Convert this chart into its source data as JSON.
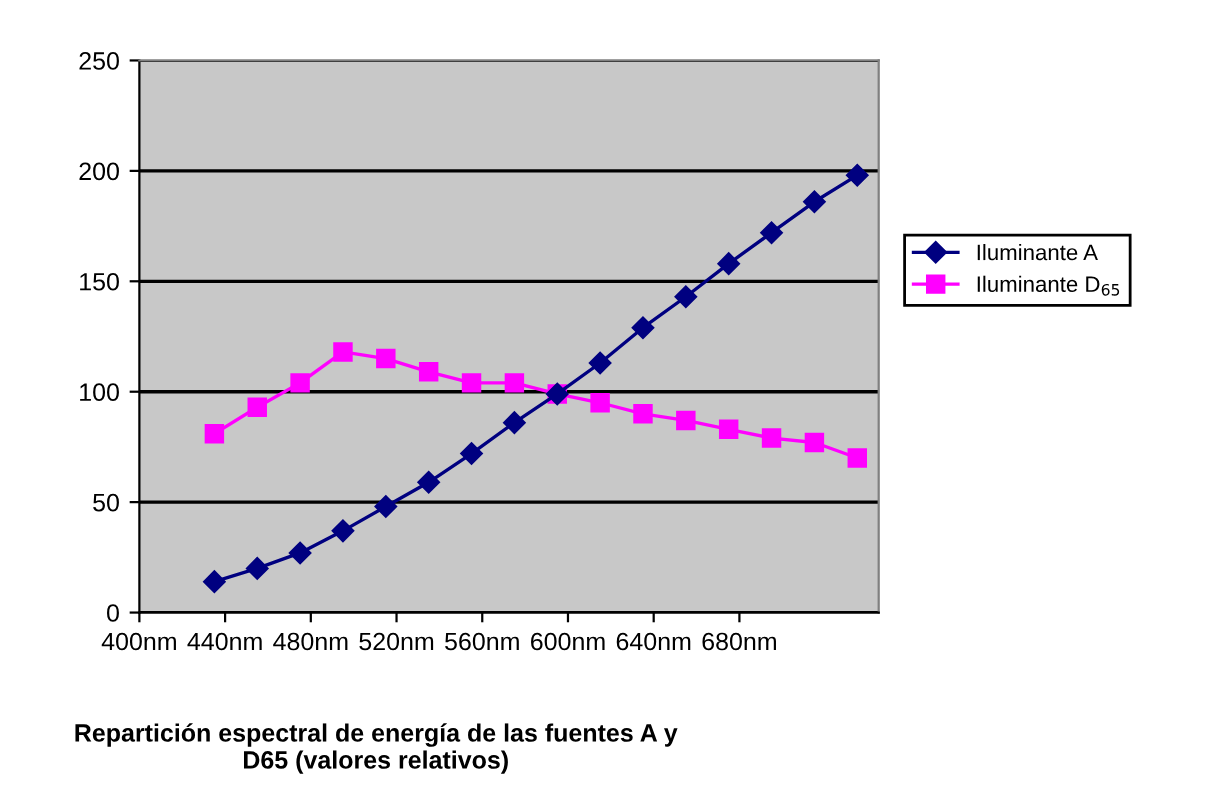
{
  "chart_data": {
    "type": "line",
    "title": "Repartición espectral de energía de las fuentes A y\nD65 (valores relativos)",
    "x": [
      435,
      455,
      475,
      495,
      515,
      535,
      555,
      575,
      595,
      615,
      635,
      655,
      675,
      695,
      715,
      735
    ],
    "series": [
      {
        "name": "Iluminante A",
        "color": "#000080",
        "marker": "diamond",
        "values": [
          14,
          20,
          27,
          37,
          48,
          59,
          72,
          86,
          99,
          113,
          129,
          143,
          158,
          172,
          186,
          198
        ]
      },
      {
        "name": "Iluminante D$_{65}$",
        "color": "#ff00ff",
        "marker": "square",
        "values": [
          81,
          93,
          104,
          118,
          115,
          109,
          104,
          104,
          99,
          95,
          90,
          87,
          83,
          79,
          77,
          70
        ]
      }
    ],
    "xlim": [
      400,
      745
    ],
    "xticks": [
      {
        "value": 400,
        "label": "400nm"
      },
      {
        "value": 440,
        "label": "440nm"
      },
      {
        "value": 480,
        "label": "480nm"
      },
      {
        "value": 520,
        "label": "520nm"
      },
      {
        "value": 560,
        "label": "560nm"
      },
      {
        "value": 600,
        "label": "600nm"
      },
      {
        "value": 640,
        "label": "640nm"
      },
      {
        "value": 680,
        "label": "680nm"
      }
    ],
    "ylim": [
      0,
      250
    ],
    "yticks": [
      0,
      50,
      100,
      150,
      200,
      250
    ],
    "grid": "y",
    "legend": "right",
    "line_style": "solid"
  }
}
